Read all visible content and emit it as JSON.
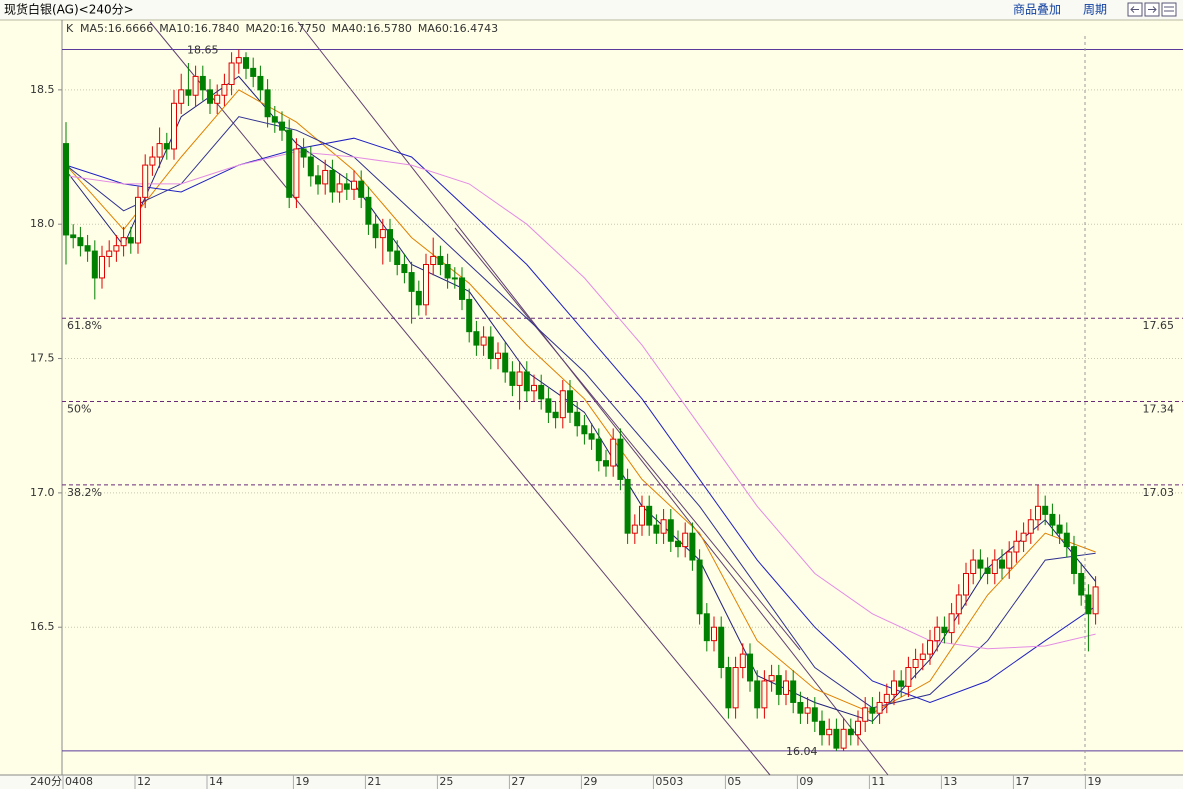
{
  "header": {
    "title": "现货白银(AG)<240分>",
    "overlay": "商品叠加",
    "period": "周期"
  },
  "chart_data": {
    "type": "candlestick",
    "indicator": "K",
    "period_label": "240分",
    "ylim": [
      15.95,
      18.76
    ],
    "yticks": [
      16.5,
      {
        "value": 17,
        "label": "17.0"
      },
      17.5,
      {
        "value": 18,
        "label": "18.0"
      },
      18.5
    ],
    "grid": true,
    "up_color": "#e00000",
    "down_color": "#008000",
    "categories": [
      "0408",
      null,
      null,
      null,
      null,
      null,
      null,
      null,
      null,
      null,
      "12",
      null,
      null,
      null,
      null,
      null,
      null,
      null,
      null,
      null,
      "14",
      null,
      null,
      null,
      null,
      null,
      null,
      null,
      null,
      null,
      null,
      null,
      "19",
      null,
      null,
      null,
      null,
      null,
      null,
      null,
      null,
      null,
      "21",
      null,
      null,
      null,
      null,
      null,
      null,
      null,
      null,
      null,
      "25",
      null,
      null,
      null,
      null,
      null,
      null,
      null,
      null,
      null,
      "27",
      null,
      null,
      null,
      null,
      null,
      null,
      null,
      null,
      null,
      "29",
      null,
      null,
      null,
      null,
      null,
      null,
      null,
      null,
      null,
      "0503",
      null,
      null,
      null,
      null,
      null,
      null,
      null,
      null,
      null,
      "05",
      null,
      null,
      null,
      null,
      null,
      null,
      null,
      null,
      null,
      "09",
      null,
      null,
      null,
      null,
      null,
      null,
      null,
      null,
      null,
      "11",
      null,
      null,
      null,
      null,
      null,
      null,
      null,
      null,
      null,
      "13",
      null,
      null,
      null,
      null,
      null,
      null,
      null,
      null,
      null,
      "17",
      null,
      null,
      null,
      null,
      null,
      null,
      null,
      null,
      null,
      "19",
      null
    ],
    "candles": [
      [
        18.3,
        18.38,
        17.85,
        17.96
      ],
      [
        17.96,
        18.0,
        17.91,
        17.95
      ],
      [
        17.95,
        17.99,
        17.88,
        17.92
      ],
      [
        17.92,
        17.96,
        17.86,
        17.9
      ],
      [
        17.9,
        17.94,
        17.72,
        17.8
      ],
      [
        17.8,
        17.92,
        17.76,
        17.88
      ],
      [
        17.88,
        17.94,
        17.84,
        17.9
      ],
      [
        17.9,
        17.96,
        17.86,
        17.92
      ],
      [
        17.92,
        17.99,
        17.88,
        17.95
      ],
      [
        17.95,
        17.99,
        17.89,
        17.93
      ],
      [
        17.93,
        18.14,
        17.89,
        18.1
      ],
      [
        18.1,
        18.26,
        18.06,
        18.22
      ],
      [
        18.22,
        18.29,
        18.18,
        18.25
      ],
      [
        18.25,
        18.36,
        18.21,
        18.3
      ],
      [
        18.3,
        18.34,
        18.24,
        18.28
      ],
      [
        18.28,
        18.5,
        18.24,
        18.45
      ],
      [
        18.45,
        18.56,
        18.41,
        18.5
      ],
      [
        18.5,
        18.6,
        18.44,
        18.48
      ],
      [
        18.48,
        18.59,
        18.44,
        18.55
      ],
      [
        18.55,
        18.59,
        18.46,
        18.5
      ],
      [
        18.5,
        18.54,
        18.41,
        18.45
      ],
      [
        18.45,
        18.52,
        18.41,
        18.48
      ],
      [
        18.48,
        18.56,
        18.44,
        18.52
      ],
      [
        18.52,
        18.64,
        18.48,
        18.6
      ],
      [
        18.6,
        18.65,
        18.56,
        18.62
      ],
      [
        18.62,
        18.64,
        18.54,
        18.58
      ],
      [
        18.58,
        18.62,
        18.51,
        18.55
      ],
      [
        18.55,
        18.59,
        18.46,
        18.5
      ],
      [
        18.5,
        18.54,
        18.36,
        18.4
      ],
      [
        18.4,
        18.44,
        18.34,
        18.38
      ],
      [
        18.38,
        18.42,
        18.31,
        18.35
      ],
      [
        18.35,
        18.39,
        18.06,
        18.1
      ],
      [
        18.1,
        18.32,
        18.06,
        18.28
      ],
      [
        18.28,
        18.32,
        18.21,
        18.25
      ],
      [
        18.25,
        18.29,
        18.14,
        18.18
      ],
      [
        18.18,
        18.22,
        18.11,
        18.15
      ],
      [
        18.15,
        18.24,
        18.11,
        18.2
      ],
      [
        18.2,
        18.24,
        18.08,
        18.12
      ],
      [
        18.12,
        18.19,
        18.08,
        18.15
      ],
      [
        18.15,
        18.19,
        18.09,
        18.13
      ],
      [
        18.13,
        18.2,
        18.09,
        18.16
      ],
      [
        18.16,
        18.2,
        18.06,
        18.1
      ],
      [
        18.1,
        18.14,
        17.96,
        18.0
      ],
      [
        18.0,
        18.04,
        17.91,
        17.95
      ],
      [
        17.95,
        18.02,
        17.85,
        17.98
      ],
      [
        17.98,
        18.02,
        17.86,
        17.9
      ],
      [
        17.9,
        17.94,
        17.81,
        17.85
      ],
      [
        17.85,
        17.89,
        17.78,
        17.82
      ],
      [
        17.82,
        17.86,
        17.63,
        17.75
      ],
      [
        17.75,
        17.79,
        17.66,
        17.7
      ],
      [
        17.7,
        17.89,
        17.66,
        17.85
      ],
      [
        17.85,
        17.95,
        17.81,
        17.88
      ],
      [
        17.88,
        17.92,
        17.81,
        17.85
      ],
      [
        17.85,
        17.89,
        17.76,
        17.8
      ],
      [
        17.8,
        17.84,
        17.76,
        17.8
      ],
      [
        17.8,
        17.84,
        17.68,
        17.72
      ],
      [
        17.72,
        17.76,
        17.56,
        17.6
      ],
      [
        17.6,
        17.64,
        17.51,
        17.55
      ],
      [
        17.55,
        17.62,
        17.51,
        17.58
      ],
      [
        17.58,
        17.62,
        17.46,
        17.5
      ],
      [
        17.5,
        17.56,
        17.46,
        17.52
      ],
      [
        17.52,
        17.56,
        17.41,
        17.45
      ],
      [
        17.45,
        17.49,
        17.36,
        17.4
      ],
      [
        17.4,
        17.49,
        17.31,
        17.45
      ],
      [
        17.45,
        17.49,
        17.34,
        17.38
      ],
      [
        17.38,
        17.44,
        17.34,
        17.4
      ],
      [
        17.4,
        17.44,
        17.31,
        17.35
      ],
      [
        17.35,
        17.39,
        17.26,
        17.3
      ],
      [
        17.3,
        17.34,
        17.24,
        17.28
      ],
      [
        17.28,
        17.42,
        17.24,
        17.38
      ],
      [
        17.38,
        17.42,
        17.26,
        17.3
      ],
      [
        17.3,
        17.34,
        17.21,
        17.25
      ],
      [
        17.25,
        17.29,
        17.18,
        17.22
      ],
      [
        17.22,
        17.26,
        17.16,
        17.2
      ],
      [
        17.2,
        17.24,
        17.08,
        17.12
      ],
      [
        17.12,
        17.16,
        17.06,
        17.1
      ],
      [
        17.1,
        17.24,
        17.06,
        17.2
      ],
      [
        17.2,
        17.24,
        17.01,
        17.05
      ],
      [
        17.05,
        17.09,
        16.81,
        16.85
      ],
      [
        16.85,
        16.92,
        16.81,
        16.88
      ],
      [
        16.88,
        16.99,
        16.84,
        16.95
      ],
      [
        16.95,
        16.99,
        16.84,
        16.88
      ],
      [
        16.88,
        16.92,
        16.81,
        16.85
      ],
      [
        16.85,
        16.94,
        16.81,
        16.9
      ],
      [
        16.9,
        16.94,
        16.78,
        16.82
      ],
      [
        16.82,
        16.86,
        16.76,
        16.8
      ],
      [
        16.8,
        16.89,
        16.76,
        16.85
      ],
      [
        16.85,
        16.89,
        16.71,
        16.75
      ],
      [
        16.75,
        16.79,
        16.51,
        16.55
      ],
      [
        16.55,
        16.59,
        16.41,
        16.45
      ],
      [
        16.45,
        16.54,
        16.41,
        16.5
      ],
      [
        16.5,
        16.54,
        16.31,
        16.35
      ],
      [
        16.35,
        16.39,
        16.16,
        16.2
      ],
      [
        16.2,
        16.39,
        16.16,
        16.35
      ],
      [
        16.35,
        16.44,
        16.31,
        16.4
      ],
      [
        16.4,
        16.44,
        16.26,
        16.3
      ],
      [
        16.3,
        16.34,
        16.16,
        16.2
      ],
      [
        16.2,
        16.34,
        16.16,
        16.3
      ],
      [
        16.3,
        16.36,
        16.26,
        16.32
      ],
      [
        16.32,
        16.36,
        16.21,
        16.25
      ],
      [
        16.25,
        16.34,
        16.21,
        16.3
      ],
      [
        16.3,
        16.34,
        16.18,
        16.22
      ],
      [
        16.22,
        16.26,
        16.14,
        16.18
      ],
      [
        16.18,
        16.24,
        16.14,
        16.2
      ],
      [
        16.2,
        16.24,
        16.11,
        16.15
      ],
      [
        16.15,
        16.19,
        16.06,
        16.1
      ],
      [
        16.1,
        16.16,
        16.06,
        16.12
      ],
      [
        16.12,
        16.16,
        16.04,
        16.05
      ],
      [
        16.05,
        16.16,
        16.04,
        16.12
      ],
      [
        16.12,
        16.16,
        16.06,
        16.1
      ],
      [
        16.1,
        16.19,
        16.06,
        16.15
      ],
      [
        16.15,
        16.24,
        16.11,
        16.2
      ],
      [
        16.2,
        16.24,
        16.14,
        16.18
      ],
      [
        16.18,
        16.26,
        16.14,
        16.22
      ],
      [
        16.22,
        16.29,
        16.18,
        16.25
      ],
      [
        16.25,
        16.34,
        16.21,
        16.3
      ],
      [
        16.3,
        16.34,
        16.24,
        16.28
      ],
      [
        16.28,
        16.39,
        16.24,
        16.35
      ],
      [
        16.35,
        16.42,
        16.31,
        16.38
      ],
      [
        16.38,
        16.44,
        16.34,
        16.4
      ],
      [
        16.4,
        16.49,
        16.36,
        16.45
      ],
      [
        16.45,
        16.54,
        16.41,
        16.5
      ],
      [
        16.5,
        16.54,
        16.44,
        16.48
      ],
      [
        16.48,
        16.59,
        16.44,
        16.55
      ],
      [
        16.55,
        16.66,
        16.51,
        16.62
      ],
      [
        16.62,
        16.74,
        16.58,
        16.7
      ],
      [
        16.7,
        16.79,
        16.66,
        16.75
      ],
      [
        16.75,
        16.79,
        16.68,
        16.72
      ],
      [
        16.72,
        16.76,
        16.66,
        16.7
      ],
      [
        16.7,
        16.79,
        16.66,
        16.75
      ],
      [
        16.75,
        16.79,
        16.68,
        16.72
      ],
      [
        16.72,
        16.82,
        16.68,
        16.78
      ],
      [
        16.78,
        16.86,
        16.74,
        16.82
      ],
      [
        16.82,
        16.89,
        16.78,
        16.85
      ],
      [
        16.85,
        16.94,
        16.81,
        16.9
      ],
      [
        16.9,
        17.03,
        16.86,
        16.95
      ],
      [
        16.95,
        16.99,
        16.88,
        16.92
      ],
      [
        16.92,
        16.96,
        16.84,
        16.88
      ],
      [
        16.88,
        16.92,
        16.81,
        16.85
      ],
      [
        16.85,
        16.89,
        16.76,
        16.8
      ],
      [
        16.8,
        16.84,
        16.66,
        16.7
      ],
      [
        16.7,
        16.74,
        16.58,
        16.62
      ],
      [
        16.62,
        16.66,
        16.41,
        16.55
      ],
      [
        16.55,
        16.69,
        16.51,
        16.65
      ]
    ],
    "series": [
      {
        "name": "MA5",
        "label": "MA5:16.6666",
        "color": "#20207a",
        "x": [
          0,
          8,
          16,
          24,
          32,
          40,
          48,
          56,
          64,
          72,
          80,
          88,
          96,
          104,
          112,
          120,
          128,
          136,
          143
        ],
        "values": [
          18.2,
          17.92,
          18.4,
          18.55,
          18.3,
          18.15,
          17.85,
          17.75,
          17.45,
          17.3,
          16.95,
          16.75,
          16.32,
          16.22,
          16.15,
          16.38,
          16.72,
          16.9,
          16.67
        ]
      },
      {
        "name": "MA10",
        "label": "MA10:16.7840",
        "color": "#e08000",
        "x": [
          0,
          8,
          16,
          24,
          32,
          40,
          48,
          56,
          64,
          72,
          80,
          88,
          96,
          104,
          112,
          120,
          128,
          136,
          143
        ],
        "values": [
          18.22,
          17.98,
          18.25,
          18.5,
          18.38,
          18.2,
          17.95,
          17.78,
          17.55,
          17.35,
          17.05,
          16.85,
          16.45,
          16.27,
          16.18,
          16.3,
          16.62,
          16.85,
          16.78
        ]
      },
      {
        "name": "MA20",
        "label": "MA20:16.7750",
        "color": "#303090",
        "x": [
          0,
          8,
          16,
          24,
          32,
          40,
          48,
          56,
          64,
          72,
          80,
          88,
          96,
          104,
          112,
          120,
          128,
          136,
          143
        ],
        "values": [
          18.22,
          18.05,
          18.15,
          18.4,
          18.35,
          18.25,
          18.05,
          17.85,
          17.65,
          17.45,
          17.2,
          16.95,
          16.65,
          16.35,
          16.2,
          16.25,
          16.45,
          16.75,
          16.775
        ]
      },
      {
        "name": "MA40",
        "label": "MA40:16.5780",
        "color": "#2020c0",
        "x": [
          0,
          8,
          16,
          24,
          32,
          40,
          48,
          56,
          64,
          72,
          80,
          88,
          96,
          104,
          112,
          120,
          128,
          136,
          143
        ],
        "values": [
          18.22,
          18.15,
          18.12,
          18.22,
          18.28,
          18.32,
          18.25,
          18.05,
          17.85,
          17.6,
          17.35,
          17.05,
          16.75,
          16.5,
          16.3,
          16.22,
          16.3,
          16.45,
          16.578
        ]
      },
      {
        "name": "MA60",
        "label": "MA60:16.4743",
        "color": "#e48ce4",
        "x": [
          0,
          8,
          16,
          24,
          32,
          40,
          48,
          56,
          64,
          72,
          80,
          88,
          96,
          104,
          112,
          120,
          128,
          136,
          143
        ],
        "values": [
          18.18,
          18.15,
          18.15,
          18.22,
          18.27,
          18.25,
          18.22,
          18.15,
          18.0,
          17.8,
          17.55,
          17.25,
          16.95,
          16.7,
          16.55,
          16.45,
          16.42,
          16.43,
          16.4743
        ]
      }
    ],
    "high_mark": 18.65,
    "low_mark": 16.04,
    "levels": [
      {
        "label": "61.8%",
        "value": 17.65
      },
      {
        "label": "50%",
        "value": 17.34
      },
      {
        "label": "38.2%",
        "value": 17.03
      }
    ]
  }
}
